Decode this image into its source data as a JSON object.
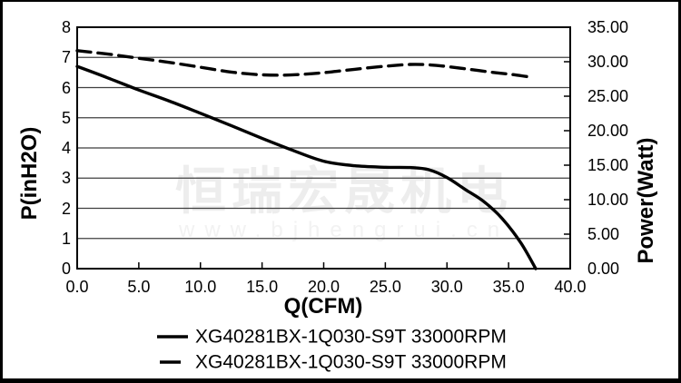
{
  "watermark": {
    "line1": "恒瑞宏晟机电",
    "line2": "www.bjhengrui.cn"
  },
  "legend": {
    "items": [
      {
        "label": "XG40281BX-1Q030-S9T 33000RPM",
        "style": "solid"
      },
      {
        "label": "XG40281BX-1Q030-S9T 33000RPM",
        "style": "dashed"
      }
    ]
  },
  "colors": {
    "curve": "#000000",
    "grid": "#3f3f3f",
    "axis": "#000000",
    "background": "#ffffff",
    "frame": "#000000",
    "watermark_cjk": "#ededed",
    "watermark_url": "#f2f2f2"
  },
  "chart_data": {
    "type": "line",
    "title": "",
    "xlabel": "Q(CFM)",
    "ylabel_left": "P(inH2O)",
    "ylabel_right": "Power(Watt)",
    "xlim": [
      0,
      40
    ],
    "ylim_left": [
      0,
      8
    ],
    "ylim_right": [
      0,
      35
    ],
    "x_tick_labels": [
      "0.0",
      "5.0",
      "10.0",
      "15.0",
      "20.0",
      "25.0",
      "30.0",
      "35.0",
      "40.0"
    ],
    "y_left_tick_labels": [
      "8",
      "7",
      "6",
      "5",
      "4",
      "3",
      "2",
      "1",
      "0"
    ],
    "y_right_tick_labels": [
      "35.00",
      "30.00",
      "25.00",
      "20.00",
      "15.00",
      "10.00",
      "5.00",
      "0.00"
    ],
    "grid": "horizontal-only",
    "legend_position": "bottom",
    "series": [
      {
        "name": "XG40281BX-1Q030-S9T 33000RPM",
        "style": "solid",
        "axis": "left",
        "unit": "inH2O",
        "x": [
          0,
          2.5,
          5,
          7.5,
          10,
          12.5,
          15,
          17.5,
          20,
          22.5,
          25,
          27,
          28.5,
          30,
          31.5,
          33,
          34.5,
          36,
          37.2
        ],
        "y": [
          6.7,
          6.32,
          5.92,
          5.55,
          5.15,
          4.74,
          4.32,
          3.92,
          3.56,
          3.41,
          3.36,
          3.35,
          3.28,
          3.02,
          2.62,
          2.22,
          1.65,
          0.85,
          0.0
        ]
      },
      {
        "name": "XG40281BX-1Q030-S9T 33000RPM",
        "style": "dashed",
        "axis": "right",
        "unit": "Watt",
        "x": [
          0,
          2.5,
          5,
          7.5,
          10,
          12.5,
          14.5,
          16.5,
          18.5,
          20.5,
          22.5,
          25,
          27,
          28.5,
          30,
          32,
          34,
          35.5,
          37
        ],
        "y": [
          31.6,
          31.1,
          30.5,
          29.9,
          29.2,
          28.5,
          28.15,
          28.05,
          28.2,
          28.5,
          28.9,
          29.35,
          29.6,
          29.55,
          29.3,
          28.85,
          28.4,
          28.1,
          27.7
        ]
      }
    ]
  }
}
